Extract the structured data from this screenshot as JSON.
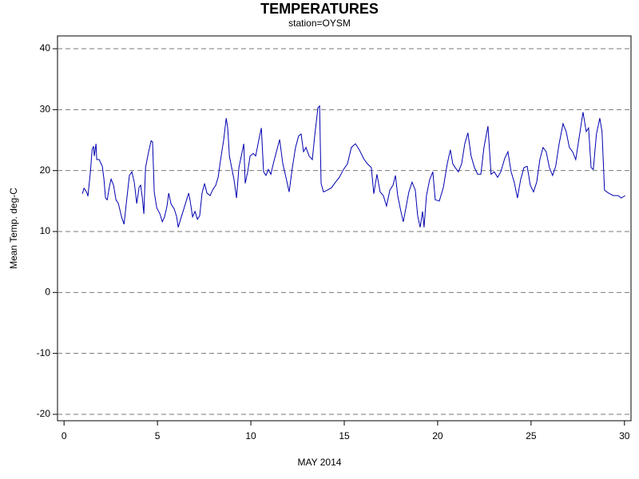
{
  "chart_data": {
    "type": "line",
    "title": "TEMPERATURES",
    "subtitle": "station=OYSM",
    "x_label": "MAY 2014",
    "y_label": "Mean Temp. deg-C",
    "color": "#0000b0",
    "grid": true,
    "xlim": [
      -0.35,
      30.35
    ],
    "ylim": [
      -21.05,
      42.1
    ],
    "xticks": [
      0,
      5,
      10,
      15,
      20,
      25,
      30
    ],
    "yticks": [
      -20,
      -10,
      0,
      10,
      20,
      30,
      40
    ],
    "x": [
      0.98,
      1.07,
      1.2,
      1.28,
      1.41,
      1.5,
      1.58,
      1.62,
      1.71,
      1.75,
      1.88,
      2.05,
      2.14,
      2.22,
      2.31,
      2.44,
      2.52,
      2.65,
      2.78,
      2.91,
      3.08,
      3.21,
      3.33,
      3.5,
      3.63,
      3.76,
      3.89,
      4.02,
      4.1,
      4.19,
      4.27,
      4.36,
      4.53,
      4.66,
      4.74,
      4.83,
      4.96,
      5.13,
      5.26,
      5.38,
      5.51,
      5.6,
      5.73,
      5.9,
      6.03,
      6.11,
      6.24,
      6.41,
      6.54,
      6.67,
      6.75,
      6.88,
      7.01,
      7.14,
      7.26,
      7.39,
      7.52,
      7.65,
      7.82,
      7.95,
      8.12,
      8.25,
      8.38,
      8.55,
      8.68,
      8.76,
      8.85,
      8.97,
      9.1,
      9.23,
      9.36,
      9.49,
      9.62,
      9.7,
      9.83,
      9.96,
      10.13,
      10.26,
      10.43,
      10.56,
      10.68,
      10.81,
      10.94,
      11.07,
      11.2,
      11.37,
      11.54,
      11.71,
      11.88,
      12.05,
      12.22,
      12.39,
      12.56,
      12.69,
      12.82,
      12.95,
      13.12,
      13.29,
      13.42,
      13.59,
      13.68,
      13.76,
      13.89,
      14.1,
      14.32,
      14.53,
      14.74,
      14.96,
      15.17,
      15.38,
      15.6,
      15.81,
      16.03,
      16.24,
      16.45,
      16.58,
      16.75,
      16.92,
      17.09,
      17.26,
      17.44,
      17.61,
      17.74,
      17.86,
      18.03,
      18.16,
      18.29,
      18.46,
      18.63,
      18.8,
      18.93,
      19.06,
      19.19,
      19.27,
      19.4,
      19.57,
      19.74,
      19.87,
      20.09,
      20.3,
      20.51,
      20.68,
      20.81,
      20.94,
      21.11,
      21.28,
      21.45,
      21.62,
      21.79,
      21.97,
      22.14,
      22.31,
      22.48,
      22.69,
      22.86,
      23.03,
      23.21,
      23.38,
      23.59,
      23.76,
      23.93,
      24.1,
      24.27,
      24.44,
      24.62,
      24.79,
      24.96,
      25.13,
      25.3,
      25.47,
      25.64,
      25.81,
      25.98,
      26.15,
      26.32,
      26.5,
      26.71,
      26.88,
      27.05,
      27.22,
      27.39,
      27.56,
      27.78,
      27.95,
      28.08,
      28.21,
      28.33,
      28.5,
      28.68,
      28.8,
      28.93,
      29.15,
      29.4,
      29.66,
      29.83,
      30.04
    ],
    "values": [
      16.2,
      17.1,
      16.5,
      15.8,
      19.8,
      23.4,
      24.0,
      22.4,
      24.4,
      21.8,
      21.8,
      20.7,
      18.5,
      15.5,
      15.2,
      17.6,
      18.6,
      17.6,
      15.2,
      14.6,
      12.4,
      11.2,
      14.6,
      19.2,
      19.8,
      18.1,
      14.6,
      17.3,
      17.6,
      15.5,
      12.9,
      20.5,
      23.1,
      24.9,
      24.7,
      16.5,
      13.9,
      12.9,
      11.6,
      12.4,
      14.2,
      16.3,
      14.5,
      13.7,
      12.4,
      10.7,
      12.0,
      13.7,
      15.0,
      16.3,
      15.0,
      12.4,
      13.3,
      12.0,
      12.6,
      16.3,
      17.9,
      16.3,
      15.9,
      16.8,
      17.6,
      18.9,
      21.8,
      25.1,
      28.6,
      27.0,
      22.4,
      20.5,
      18.5,
      15.5,
      20.5,
      22.4,
      24.4,
      17.9,
      19.8,
      22.4,
      22.8,
      22.4,
      25.1,
      27.0,
      19.8,
      19.2,
      20.2,
      19.4,
      21.1,
      23.1,
      25.1,
      21.1,
      18.9,
      16.5,
      20.5,
      23.8,
      25.7,
      26.0,
      23.1,
      23.8,
      22.4,
      21.8,
      25.7,
      30.3,
      30.6,
      17.9,
      16.5,
      16.8,
      17.2,
      18.1,
      18.9,
      20.2,
      21.1,
      23.8,
      24.4,
      23.4,
      22.0,
      21.1,
      20.5,
      16.2,
      19.4,
      16.5,
      15.9,
      14.2,
      16.8,
      17.6,
      19.2,
      15.9,
      13.3,
      11.6,
      13.7,
      16.5,
      18.1,
      16.8,
      12.6,
      10.7,
      13.3,
      10.7,
      15.9,
      18.5,
      19.8,
      15.2,
      15.0,
      17.2,
      21.1,
      23.4,
      21.1,
      20.5,
      19.8,
      21.1,
      24.4,
      26.2,
      22.4,
      20.5,
      19.4,
      19.4,
      23.8,
      27.3,
      19.4,
      19.8,
      18.9,
      19.8,
      22.0,
      23.1,
      19.8,
      18.1,
      15.5,
      18.5,
      20.5,
      20.7,
      17.6,
      16.5,
      18.1,
      21.8,
      23.8,
      23.1,
      20.5,
      19.2,
      20.7,
      24.4,
      27.7,
      26.4,
      23.8,
      23.1,
      21.8,
      25.1,
      29.6,
      26.4,
      27.0,
      20.5,
      20.2,
      26.0,
      28.6,
      26.4,
      16.8,
      16.3,
      15.9,
      15.9,
      15.5,
      15.9
    ]
  }
}
